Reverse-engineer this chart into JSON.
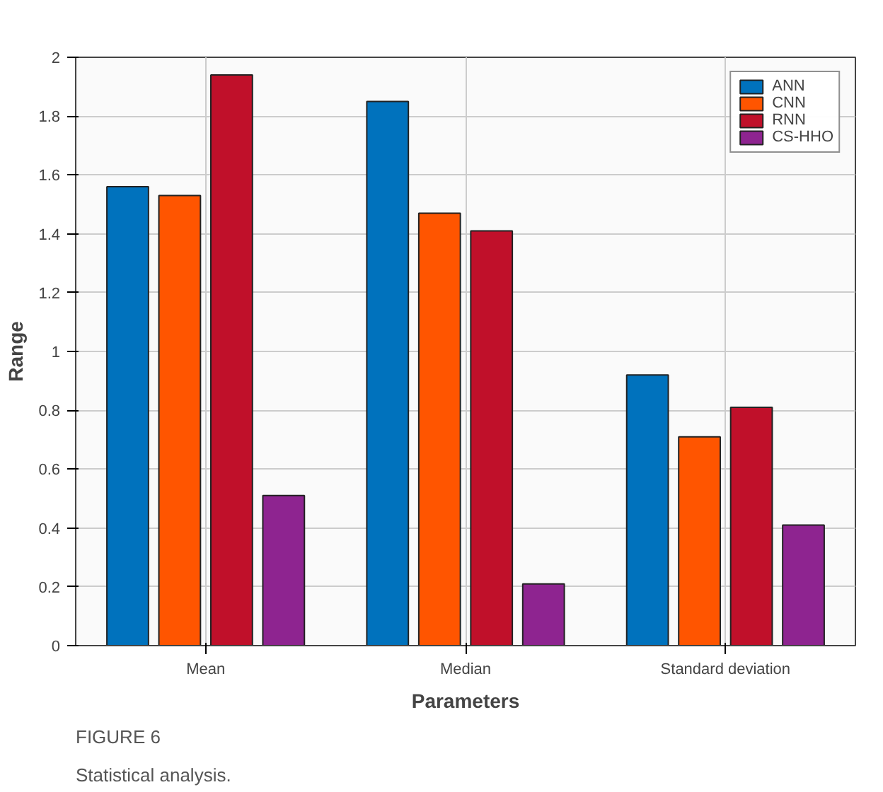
{
  "chart_data": {
    "type": "bar",
    "xlabel": "Parameters",
    "ylabel": "Range",
    "categories": [
      "Mean",
      "Median",
      "Standard deviation"
    ],
    "series": [
      {
        "name": "ANN",
        "color": "#0072bd",
        "values": [
          1.56,
          1.85,
          0.92
        ]
      },
      {
        "name": "CNN",
        "color": "#ff5500",
        "values": [
          1.53,
          1.47,
          0.71
        ]
      },
      {
        "name": "RNN",
        "color": "#c0102a",
        "values": [
          1.94,
          1.41,
          0.81
        ]
      },
      {
        "name": "CS-HHO",
        "color": "#8e2490",
        "values": [
          0.51,
          0.21,
          0.41
        ]
      }
    ],
    "ylim": [
      0,
      2
    ],
    "yticks": [
      0,
      {
        "value": 0.2,
        "label": "0.2"
      },
      {
        "value": 0.4,
        "label": "0.4"
      },
      {
        "value": 0.6,
        "label": "0.6"
      },
      {
        "value": 0.8,
        "label": "0.8"
      },
      1,
      {
        "value": 1.2,
        "label": "1.2"
      },
      {
        "value": 1.4,
        "label": "1.4"
      },
      {
        "value": 1.6,
        "label": "1.6"
      },
      {
        "value": 1.8,
        "label": "1.8"
      },
      2
    ],
    "grid": true,
    "legend": "top right",
    "annotations": [
      "FIGURE 6",
      "Statistical analysis."
    ]
  }
}
